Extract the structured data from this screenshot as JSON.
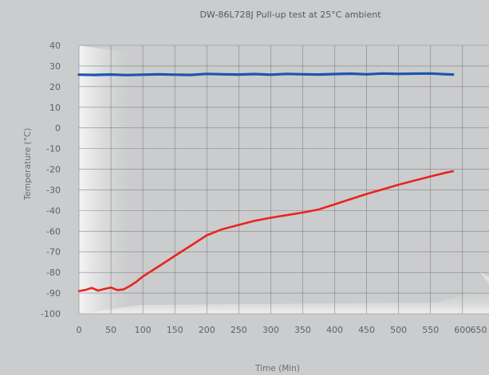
{
  "chart_data": {
    "type": "line",
    "title": "DW-86L728J Pull-up test at 25°C ambient",
    "xlabel": "Time (Min)",
    "ylabel": "Temperature (°C)",
    "xlim": [
      0,
      650
    ],
    "x_ticks": [
      "0",
      "50",
      "100",
      "150",
      "200",
      "250",
      "300",
      "350",
      "400",
      "450",
      "500",
      "550",
      "600",
      "650"
    ],
    "y_ticks": [
      "40",
      "30",
      "20",
      "10",
      "0",
      "-10",
      "-20",
      "-30",
      "-40",
      "-60",
      "-70",
      "-80",
      "-90",
      "-100"
    ],
    "grid": true,
    "colors": {
      "series_1": "#1a56b0",
      "series_2": "#e8251c",
      "grid": "#6f7174",
      "background": "#cbcccd"
    },
    "series": [
      {
        "x": [
          0,
          25,
          50,
          75,
          100,
          125,
          150,
          175,
          200,
          225,
          250,
          275,
          300,
          325,
          350,
          375,
          400,
          425,
          450,
          475,
          500,
          525,
          550,
          575,
          585
        ],
        "y": [
          25.8,
          25.7,
          25.9,
          25.6,
          25.8,
          26.0,
          25.8,
          25.7,
          26.2,
          26.0,
          25.9,
          26.1,
          25.8,
          26.2,
          26.0,
          25.9,
          26.1,
          26.3,
          26.0,
          26.4,
          26.2,
          26.3,
          26.4,
          26.0,
          25.9
        ]
      },
      {
        "x": [
          0,
          10,
          20,
          30,
          40,
          50,
          60,
          70,
          80,
          90,
          100,
          125,
          150,
          175,
          200,
          225,
          250,
          275,
          300,
          325,
          350,
          375,
          400,
          425,
          450,
          475,
          500,
          525,
          550,
          575,
          585
        ],
        "y": [
          -89,
          -88.5,
          -87.5,
          -88.8,
          -88.0,
          -87.3,
          -88.6,
          -88.2,
          -86.5,
          -84.5,
          -82,
          -77,
          -72,
          -67,
          -62,
          -58,
          -54,
          -50,
          -47,
          -44.5,
          -42,
          -39.5,
          -37,
          -34.5,
          -32,
          -29.8,
          -27.5,
          -25.5,
          -23.5,
          -21.6,
          -21
        ]
      }
    ]
  }
}
